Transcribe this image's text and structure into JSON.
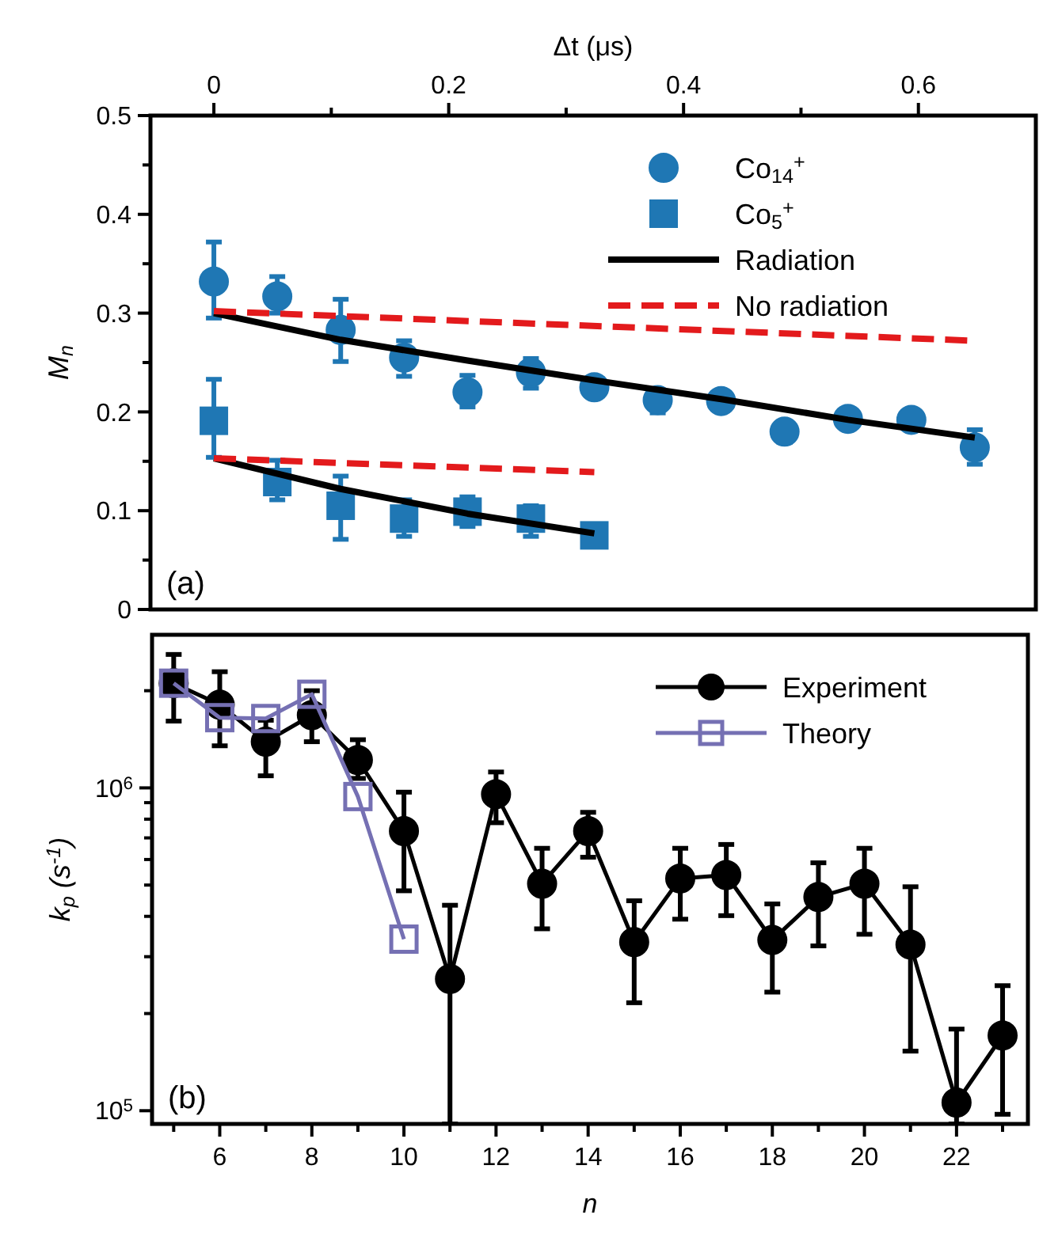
{
  "chart_data": [
    {
      "type": "scatter",
      "xlabel": "Δt (μs)",
      "ylabel": "M$_{n}$",
      "xlim": [
        -0.054,
        0.7
      ],
      "xticks": [
        0,
        {
          "value": 0.1,
          "label": null
        },
        0.2,
        {
          "value": 0.3,
          "label": null
        },
        0.4,
        {
          "value": 0.5,
          "label": null
        },
        0.6
      ],
      "ylim": [
        0,
        0.5
      ],
      "yticks": [
        0,
        {
          "value": 0.05,
          "label": null
        },
        0.1,
        {
          "value": 0.15,
          "label": null
        },
        0.2,
        {
          "value": 0.25,
          "label": null
        },
        0.3,
        {
          "value": 0.35,
          "label": null
        },
        0.4,
        {
          "value": 0.45,
          "label": null
        },
        0.5
      ],
      "legend": "top right",
      "grid": false,
      "annotations": [
        "(a)"
      ],
      "series": [
        {
          "name": "Co$_{14}$$^{+}$",
          "color": "#1f77b4",
          "marker": "circle",
          "x": [
            0,
            0.054,
            0.108,
            0.162,
            0.216,
            0.27,
            0.324,
            0.378,
            0.432,
            0.486,
            0.54,
            0.594,
            0.648
          ],
          "values": [
            0.332,
            0.317,
            0.283,
            0.255,
            0.22,
            0.24,
            0.225,
            0.212,
            0.211,
            0.18,
            0.193,
            0.192,
            0.164
          ],
          "errors": [
            [
              0.295,
              0.372
            ],
            [
              0.3,
              0.337
            ],
            [
              0.251,
              0.314
            ],
            [
              0.236,
              0.272
            ],
            [
              0.205,
              0.237
            ],
            [
              0.224,
              0.254
            ],
            null,
            [
              0.199,
              0.221
            ],
            [
              0.201,
              0.219
            ],
            [
              0.169,
              0.19
            ],
            [
              0.183,
              0.201
            ],
            null,
            [
              0.147,
              0.182
            ]
          ]
        },
        {
          "name": "Co$_{5}$$^{+}$",
          "color": "#1f77b4",
          "marker": "square",
          "x": [
            0,
            0.054,
            0.108,
            0.162,
            0.216,
            0.27,
            0.324
          ],
          "values": [
            0.191,
            0.129,
            0.105,
            0.092,
            0.099,
            0.092,
            0.075
          ],
          "errors": [
            [
              0.154,
              0.233
            ],
            [
              0.111,
              0.151
            ],
            [
              0.071,
              0.135
            ],
            [
              0.074,
              0.111
            ],
            [
              0.084,
              0.114
            ],
            [
              0.074,
              0.105
            ],
            [
              0.065,
              0.083
            ]
          ]
        },
        {
          "type": "line",
          "name": "Radiation",
          "color": "#000000",
          "line_style": "solid",
          "marker": "none",
          "x": [
            0,
            0.108,
            0.216,
            0.324,
            0.432,
            0.54,
            0.648
          ],
          "values": [
            0.3,
            0.273,
            0.252,
            0.232,
            0.213,
            0.192,
            0.174
          ]
        },
        {
          "type": "line",
          "name": "No radiation",
          "color": "#e31a1c",
          "line_style": "dashed",
          "marker": "none",
          "x": [
            0,
            0.648
          ],
          "values": [
            0.302,
            0.272
          ]
        },
        {
          "type": "line",
          "color": "#000000",
          "line_style": "solid",
          "marker": "none",
          "x": [
            0,
            0.108,
            0.216,
            0.324
          ],
          "values": [
            0.153,
            0.122,
            0.097,
            0.077
          ]
        },
        {
          "type": "line",
          "color": "#e31a1c",
          "line_style": "dashed",
          "marker": "none",
          "x": [
            0,
            0.324
          ],
          "values": [
            0.153,
            0.139
          ]
        }
      ]
    },
    {
      "type": "line",
      "xlabel": "n",
      "ylabel": "k$_{p}$ (s$^{-1}$)",
      "log": "y",
      "xlim": [
        4.53,
        23.55
      ],
      "xticks": [
        {
          "value": 5,
          "label": null
        },
        6,
        {
          "value": 7,
          "label": null
        },
        8,
        {
          "value": 9,
          "label": null
        },
        10,
        {
          "value": 11,
          "label": null
        },
        12,
        {
          "value": 13,
          "label": null
        },
        14,
        {
          "value": 15,
          "label": null
        },
        16,
        {
          "value": 17,
          "label": null
        },
        18,
        {
          "value": 19,
          "label": null
        },
        20,
        {
          "value": 21,
          "label": null
        },
        22,
        {
          "value": 23,
          "label": null
        }
      ],
      "ylim": [
        91000,
        2980000
      ],
      "yticks": [
        {
          "value": 100000,
          "label": "10$^{5}$"
        },
        {
          "value": 200000,
          "label": null
        },
        {
          "value": 300000,
          "label": null
        },
        {
          "value": 400000,
          "label": null
        },
        {
          "value": 500000,
          "label": null
        },
        {
          "value": 600000,
          "label": null
        },
        {
          "value": 700000,
          "label": null
        },
        {
          "value": 800000,
          "label": null
        },
        {
          "value": 900000,
          "label": null
        },
        {
          "value": 1000000,
          "label": "10$^{6}$"
        },
        {
          "value": 2000000,
          "label": null
        }
      ],
      "legend": "top right",
      "grid": false,
      "annotations": [
        "(b)"
      ],
      "series": [
        {
          "name": "Experiment",
          "color": "#000000",
          "marker": "circle",
          "line_style": "solid",
          "x": [
            5,
            6,
            7,
            8,
            9,
            10,
            11,
            12,
            13,
            14,
            15,
            16,
            17,
            18,
            19,
            20,
            21,
            22,
            23
          ],
          "values": [
            2110000,
            1810000,
            1390000,
            1680000,
            1220000,
            735000,
            256000,
            956000,
            505000,
            735000,
            333000,
            524000,
            537000,
            338000,
            459000,
            505000,
            327000,
            106000,
            171000
          ],
          "errors": [
            [
              1610000,
              2590000
            ],
            [
              1350000,
              2290000
            ],
            [
              1090000,
              1620000
            ],
            [
              1390000,
              2000000
            ],
            [
              1070000,
              1410000
            ],
            [
              480000,
              970000
            ],
            [
              91000,
              433000
            ],
            [
              780000,
              1120000
            ],
            [
              366000,
              650000
            ],
            [
              610000,
              840000
            ],
            [
              216000,
              447000
            ],
            [
              392000,
              650000
            ],
            [
              402000,
              668000
            ],
            [
              233000,
              437000
            ],
            [
              324000,
              586000
            ],
            [
              352000,
              650000
            ],
            [
              153000,
              494000
            ],
            [
              91000,
              179000
            ],
            [
              97500,
              244000
            ]
          ]
        },
        {
          "name": "Theory",
          "color": "#7570b3",
          "marker": "square",
          "line_style": "solid",
          "x": [
            5,
            6,
            7,
            8,
            9,
            10
          ],
          "values": [
            2110000,
            1650000,
            1640000,
            1950000,
            940000,
            340000
          ]
        }
      ]
    }
  ]
}
